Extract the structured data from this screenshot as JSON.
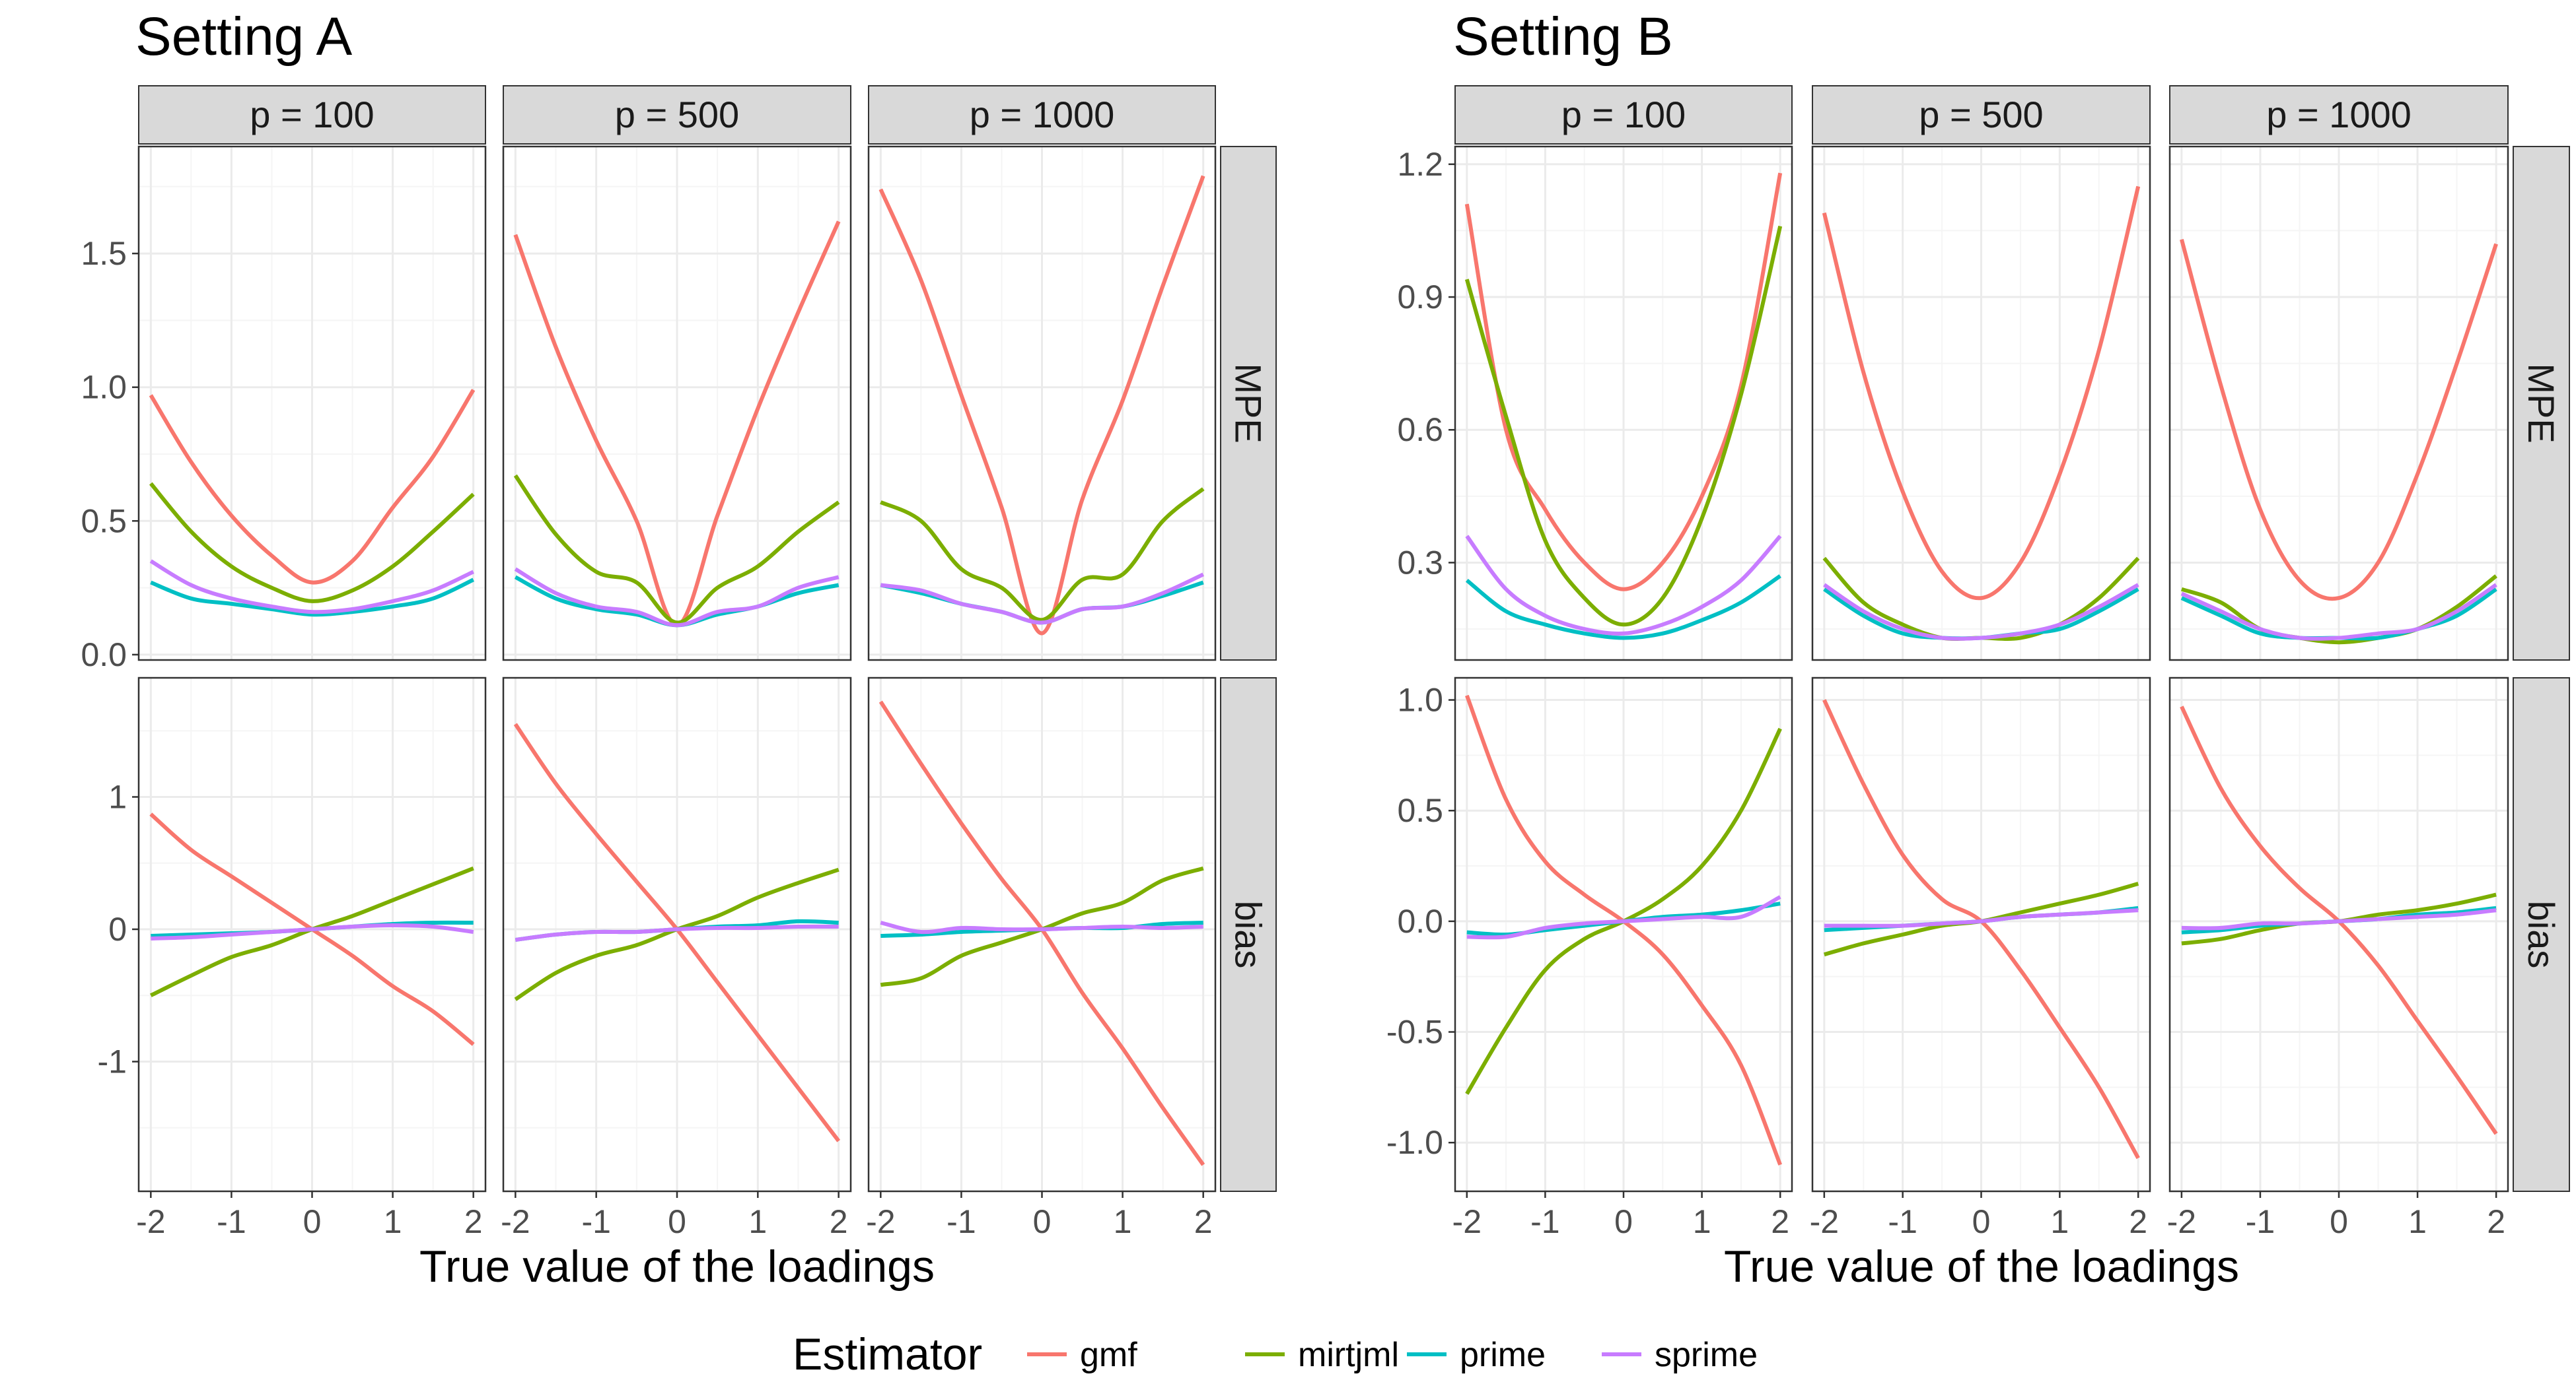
{
  "chart_data": [
    {
      "type": "line",
      "title": "Setting A",
      "xlabel": "True value of the loadings",
      "facet_columns": [
        "p = 100",
        "p = 500",
        "p = 1000"
      ],
      "facet_rows": [
        "MPE",
        "bias"
      ],
      "x_ticks": [
        "-2",
        "-1",
        "0",
        "1",
        "2"
      ],
      "xlim": [
        -2.15,
        2.15
      ],
      "rows": {
        "MPE": {
          "ylim": [
            -0.02,
            1.9
          ],
          "y_ticks": [
            0.0,
            0.5,
            1.0,
            1.5
          ],
          "y_tick_labels": [
            "0.0",
            "0.5",
            "1.0",
            "1.5"
          ]
        },
        "bias": {
          "ylim": [
            -1.98,
            1.9
          ],
          "y_ticks": [
            -1,
            0,
            1
          ],
          "y_tick_labels": [
            "-1",
            "0",
            "1"
          ]
        }
      },
      "x": [
        -2,
        -1.5,
        -1,
        -0.5,
        0,
        0.5,
        1,
        1.5,
        2
      ],
      "panels": [
        {
          "column": "p = 100",
          "row": "MPE",
          "series": [
            {
              "name": "gmf",
              "values": [
                0.97,
                0.72,
                0.52,
                0.37,
                0.27,
                0.35,
                0.55,
                0.74,
                0.99
              ]
            },
            {
              "name": "mirtjml",
              "values": [
                0.64,
                0.46,
                0.33,
                0.25,
                0.2,
                0.24,
                0.33,
                0.46,
                0.6
              ]
            },
            {
              "name": "prime",
              "values": [
                0.27,
                0.21,
                0.19,
                0.17,
                0.15,
                0.16,
                0.18,
                0.21,
                0.28
              ]
            },
            {
              "name": "sprime",
              "values": [
                0.35,
                0.26,
                0.21,
                0.18,
                0.16,
                0.17,
                0.2,
                0.24,
                0.31
              ]
            }
          ]
        },
        {
          "column": "p = 500",
          "row": "MPE",
          "series": [
            {
              "name": "gmf",
              "values": [
                1.57,
                1.15,
                0.8,
                0.5,
                0.11,
                0.52,
                0.92,
                1.28,
                1.62
              ]
            },
            {
              "name": "mirtjml",
              "values": [
                0.67,
                0.45,
                0.31,
                0.27,
                0.12,
                0.25,
                0.33,
                0.46,
                0.57
              ]
            },
            {
              "name": "prime",
              "values": [
                0.29,
                0.21,
                0.17,
                0.15,
                0.11,
                0.15,
                0.18,
                0.23,
                0.26
              ]
            },
            {
              "name": "sprime",
              "values": [
                0.32,
                0.23,
                0.18,
                0.16,
                0.11,
                0.16,
                0.18,
                0.25,
                0.29
              ]
            }
          ]
        },
        {
          "column": "p = 1000",
          "row": "MPE",
          "series": [
            {
              "name": "gmf",
              "values": [
                1.74,
                1.4,
                0.97,
                0.55,
                0.08,
                0.58,
                0.95,
                1.38,
                1.79
              ]
            },
            {
              "name": "mirtjml",
              "values": [
                0.57,
                0.5,
                0.32,
                0.25,
                0.13,
                0.28,
                0.3,
                0.5,
                0.62
              ]
            },
            {
              "name": "prime",
              "values": [
                0.26,
                0.23,
                0.19,
                0.16,
                0.12,
                0.17,
                0.18,
                0.22,
                0.27
              ]
            },
            {
              "name": "sprime",
              "values": [
                0.26,
                0.24,
                0.19,
                0.16,
                0.12,
                0.17,
                0.18,
                0.23,
                0.3
              ]
            }
          ]
        },
        {
          "column": "p = 100",
          "row": "bias",
          "series": [
            {
              "name": "gmf",
              "values": [
                0.87,
                0.6,
                0.4,
                0.2,
                0.0,
                -0.2,
                -0.43,
                -0.62,
                -0.87
              ]
            },
            {
              "name": "mirtjml",
              "values": [
                -0.5,
                -0.35,
                -0.21,
                -0.12,
                0.0,
                0.1,
                0.22,
                0.34,
                0.46
              ]
            },
            {
              "name": "prime",
              "values": [
                -0.05,
                -0.04,
                -0.03,
                -0.02,
                0.0,
                0.02,
                0.04,
                0.05,
                0.05
              ]
            },
            {
              "name": "sprime",
              "values": [
                -0.07,
                -0.06,
                -0.04,
                -0.02,
                0.0,
                0.02,
                0.03,
                0.02,
                -0.02
              ]
            }
          ]
        },
        {
          "column": "p = 500",
          "row": "bias",
          "series": [
            {
              "name": "gmf",
              "values": [
                1.55,
                1.1,
                0.72,
                0.36,
                0.0,
                -0.4,
                -0.8,
                -1.2,
                -1.6
              ]
            },
            {
              "name": "mirtjml",
              "values": [
                -0.53,
                -0.33,
                -0.2,
                -0.12,
                0.0,
                0.1,
                0.24,
                0.35,
                0.45
              ]
            },
            {
              "name": "prime",
              "values": [
                -0.08,
                -0.04,
                -0.02,
                -0.02,
                0.0,
                0.02,
                0.03,
                0.06,
                0.05
              ]
            },
            {
              "name": "sprime",
              "values": [
                -0.08,
                -0.04,
                -0.02,
                -0.02,
                0.0,
                0.01,
                0.01,
                0.02,
                0.02
              ]
            }
          ]
        },
        {
          "column": "p = 1000",
          "row": "bias",
          "series": [
            {
              "name": "gmf",
              "values": [
                1.72,
                1.25,
                0.8,
                0.38,
                0.0,
                -0.48,
                -0.9,
                -1.35,
                -1.78
              ]
            },
            {
              "name": "mirtjml",
              "values": [
                -0.42,
                -0.37,
                -0.2,
                -0.1,
                0.0,
                0.12,
                0.2,
                0.37,
                0.46
              ]
            },
            {
              "name": "prime",
              "values": [
                -0.05,
                -0.04,
                -0.02,
                -0.01,
                0.0,
                0.01,
                0.01,
                0.04,
                0.05
              ]
            },
            {
              "name": "sprime",
              "values": [
                0.05,
                -0.02,
                0.01,
                0.0,
                0.0,
                0.01,
                0.02,
                0.01,
                0.02
              ]
            }
          ]
        }
      ]
    },
    {
      "type": "line",
      "title": "Setting B",
      "xlabel": "True value of the loadings",
      "facet_columns": [
        "p = 100",
        "p = 500",
        "p = 1000"
      ],
      "facet_rows": [
        "MPE",
        "bias"
      ],
      "x_ticks": [
        "-2",
        "-1",
        "0",
        "1",
        "2"
      ],
      "xlim": [
        -2.15,
        2.15
      ],
      "rows": {
        "MPE": {
          "ylim": [
            0.08,
            1.24
          ],
          "y_ticks": [
            0.3,
            0.6,
            0.9,
            1.2
          ],
          "y_tick_labels": [
            "0.3",
            "0.6",
            "0.9",
            "1.2"
          ]
        },
        "bias": {
          "ylim": [
            -1.22,
            1.1
          ],
          "y_ticks": [
            -1.0,
            -0.5,
            0.0,
            0.5,
            1.0
          ],
          "y_tick_labels": [
            "-1.0",
            "-0.5",
            "0.0",
            "0.5",
            "1.0"
          ]
        }
      },
      "x": [
        -2,
        -1.5,
        -1,
        -0.5,
        0,
        0.5,
        1,
        1.5,
        2
      ],
      "panels": [
        {
          "column": "p = 100",
          "row": "MPE",
          "series": [
            {
              "name": "gmf",
              "values": [
                1.11,
                0.6,
                0.42,
                0.3,
                0.24,
                0.3,
                0.45,
                0.7,
                1.18
              ]
            },
            {
              "name": "mirtjml",
              "values": [
                0.94,
                0.63,
                0.35,
                0.22,
                0.16,
                0.22,
                0.4,
                0.68,
                1.06
              ]
            },
            {
              "name": "prime",
              "values": [
                0.26,
                0.19,
                0.16,
                0.14,
                0.13,
                0.14,
                0.17,
                0.21,
                0.27
              ]
            },
            {
              "name": "sprime",
              "values": [
                0.36,
                0.24,
                0.18,
                0.15,
                0.14,
                0.16,
                0.2,
                0.26,
                0.36
              ]
            }
          ]
        },
        {
          "column": "p = 500",
          "row": "MPE",
          "series": [
            {
              "name": "gmf",
              "values": [
                1.09,
                0.73,
                0.46,
                0.28,
                0.22,
                0.3,
                0.5,
                0.78,
                1.15
              ]
            },
            {
              "name": "mirtjml",
              "values": [
                0.31,
                0.21,
                0.16,
                0.13,
                0.13,
                0.13,
                0.16,
                0.22,
                0.31
              ]
            },
            {
              "name": "prime",
              "values": [
                0.24,
                0.18,
                0.14,
                0.13,
                0.13,
                0.14,
                0.15,
                0.19,
                0.24
              ]
            },
            {
              "name": "sprime",
              "values": [
                0.25,
                0.19,
                0.15,
                0.13,
                0.13,
                0.14,
                0.16,
                0.2,
                0.25
              ]
            }
          ]
        },
        {
          "column": "p = 1000",
          "row": "MPE",
          "series": [
            {
              "name": "gmf",
              "values": [
                1.03,
                0.7,
                0.42,
                0.26,
                0.22,
                0.3,
                0.5,
                0.75,
                1.02
              ]
            },
            {
              "name": "mirtjml",
              "values": [
                0.24,
                0.21,
                0.15,
                0.13,
                0.12,
                0.13,
                0.15,
                0.2,
                0.27
              ]
            },
            {
              "name": "prime",
              "values": [
                0.22,
                0.18,
                0.14,
                0.13,
                0.13,
                0.13,
                0.15,
                0.18,
                0.24
              ]
            },
            {
              "name": "sprime",
              "values": [
                0.23,
                0.19,
                0.15,
                0.13,
                0.13,
                0.14,
                0.15,
                0.19,
                0.25
              ]
            }
          ]
        },
        {
          "column": "p = 100",
          "row": "bias",
          "series": [
            {
              "name": "gmf",
              "values": [
                1.02,
                0.55,
                0.27,
                0.12,
                0.0,
                -0.15,
                -0.38,
                -0.65,
                -1.1
              ]
            },
            {
              "name": "mirtjml",
              "values": [
                -0.78,
                -0.48,
                -0.22,
                -0.08,
                0.0,
                0.1,
                0.25,
                0.5,
                0.87
              ]
            },
            {
              "name": "prime",
              "values": [
                -0.05,
                -0.06,
                -0.04,
                -0.02,
                0.0,
                0.02,
                0.03,
                0.05,
                0.08
              ]
            },
            {
              "name": "sprime",
              "values": [
                -0.07,
                -0.07,
                -0.03,
                -0.01,
                0.0,
                0.01,
                0.02,
                0.02,
                0.11
              ]
            }
          ]
        },
        {
          "column": "p = 500",
          "row": "bias",
          "series": [
            {
              "name": "gmf",
              "values": [
                1.0,
                0.62,
                0.3,
                0.1,
                0.0,
                -0.22,
                -0.48,
                -0.75,
                -1.07
              ]
            },
            {
              "name": "mirtjml",
              "values": [
                -0.15,
                -0.1,
                -0.06,
                -0.02,
                0.0,
                0.04,
                0.08,
                0.12,
                0.17
              ]
            },
            {
              "name": "prime",
              "values": [
                -0.04,
                -0.03,
                -0.02,
                -0.01,
                0.0,
                0.02,
                0.03,
                0.04,
                0.06
              ]
            },
            {
              "name": "sprime",
              "values": [
                -0.02,
                -0.02,
                -0.02,
                -0.01,
                0.0,
                0.02,
                0.03,
                0.04,
                0.05
              ]
            }
          ]
        },
        {
          "column": "p = 1000",
          "row": "bias",
          "series": [
            {
              "name": "gmf",
              "values": [
                0.97,
                0.6,
                0.34,
                0.15,
                0.0,
                -0.2,
                -0.45,
                -0.7,
                -0.96
              ]
            },
            {
              "name": "mirtjml",
              "values": [
                -0.1,
                -0.08,
                -0.04,
                -0.01,
                0.0,
                0.03,
                0.05,
                0.08,
                0.12
              ]
            },
            {
              "name": "prime",
              "values": [
                -0.05,
                -0.04,
                -0.02,
                -0.01,
                0.0,
                0.01,
                0.03,
                0.04,
                0.06
              ]
            },
            {
              "name": "sprime",
              "values": [
                -0.03,
                -0.03,
                -0.01,
                -0.01,
                0.0,
                0.01,
                0.02,
                0.03,
                0.05
              ]
            }
          ]
        }
      ]
    }
  ],
  "legend": {
    "title": "Estimator",
    "position": "bottom",
    "items": [
      {
        "name": "gmf",
        "color": "#F8766D"
      },
      {
        "name": "mirtjml",
        "color": "#7CAE00"
      },
      {
        "name": "prime",
        "color": "#00BFC4"
      },
      {
        "name": "sprime",
        "color": "#C77CFF"
      }
    ]
  },
  "style": {
    "panel_border": "#333333",
    "strip_fill": "#D9D9D9",
    "grid_major": "#EBEBEB",
    "grid_minor": "#F5F5F5",
    "tick_color": "#333333"
  }
}
